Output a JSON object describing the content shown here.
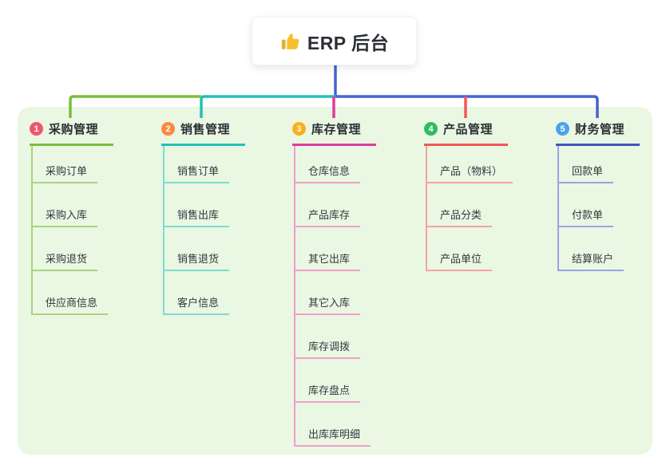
{
  "root": {
    "label": "ERP 后台",
    "icon": "thumbs-up"
  },
  "branches": [
    {
      "index": "1",
      "label": "采购管理",
      "badge_color": "#f2566a",
      "line_color": "#7cbe3f",
      "child_line_color": "#a9d37e",
      "children": [
        "采购订单",
        "采购入库",
        "采购退货",
        "供应商信息"
      ]
    },
    {
      "index": "2",
      "label": "销售管理",
      "badge_color": "#fb8a3e",
      "line_color": "#1fc2b3",
      "child_line_color": "#7edcd1",
      "children": [
        "销售订单",
        "销售出库",
        "销售退货",
        "客户信息"
      ]
    },
    {
      "index": "3",
      "label": "库存管理",
      "badge_color": "#fbaf19",
      "line_color": "#dd3c9d",
      "child_line_color": "#efa0cd",
      "children": [
        "仓库信息",
        "产品库存",
        "其它出库",
        "其它入库",
        "库存调拨",
        "库存盘点",
        "出库库明细"
      ]
    },
    {
      "index": "4",
      "label": "产品管理",
      "badge_color": "#2fbd5f",
      "line_color": "#f25757",
      "child_line_color": "#f6a2a2",
      "children": [
        "产品（物料）",
        "产品分类",
        "产品单位"
      ]
    },
    {
      "index": "5",
      "label": "财务管理",
      "badge_color": "#4aa3e8",
      "line_color": "#3f56c5",
      "child_line_color": "#97a6e0",
      "children": [
        "回款单",
        "付款单",
        "结算账户"
      ]
    }
  ],
  "colors": {
    "canvas_bg": "#ffffff",
    "panel_bg": "#eaf7e3",
    "root_line": "#4a60d2",
    "icon_hand": "#f5c02c",
    "icon_cuff": "#e3af35",
    "text": "#33383f"
  }
}
